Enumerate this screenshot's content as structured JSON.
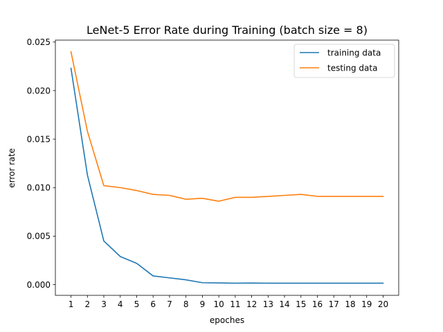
{
  "chart_data": {
    "type": "line",
    "title": "LeNet-5 Error Rate during Training (batch size = 8)",
    "xlabel": "epoches",
    "ylabel": "error rate",
    "x": [
      1,
      2,
      3,
      4,
      5,
      6,
      7,
      8,
      9,
      10,
      11,
      12,
      13,
      14,
      15,
      16,
      17,
      18,
      19,
      20
    ],
    "x_ticks": [
      "1",
      "2",
      "3",
      "4",
      "5",
      "6",
      "7",
      "8",
      "9",
      "10",
      "11",
      "12",
      "13",
      "14",
      "15",
      "16",
      "17",
      "18",
      "19",
      "20"
    ],
    "y_ticks": [
      "0.000",
      "0.005",
      "0.010",
      "0.015",
      "0.020",
      "0.025"
    ],
    "y_tick_values": [
      0,
      0.005,
      0.01,
      0.015,
      0.02,
      0.025
    ],
    "xlim": [
      0.05,
      20.95
    ],
    "ylim": [
      -0.0011,
      0.0252
    ],
    "grid": false,
    "legend_position": "top-right",
    "series": [
      {
        "name": "training data",
        "color": "#1f77b4",
        "values": [
          0.0223,
          0.0113,
          0.0045,
          0.0029,
          0.0022,
          0.0009,
          0.0007,
          0.0005,
          0.0002,
          0.00018,
          0.00015,
          0.00017,
          0.00015,
          0.00015,
          0.00015,
          0.00015,
          0.00015,
          0.00015,
          0.00015,
          0.00015
        ]
      },
      {
        "name": "testing data",
        "color": "#ff7f0e",
        "values": [
          0.024,
          0.0158,
          0.0102,
          0.01,
          0.0097,
          0.0093,
          0.0092,
          0.0088,
          0.0089,
          0.0086,
          0.009,
          0.009,
          0.0091,
          0.0092,
          0.0093,
          0.0091,
          0.0091,
          0.0091,
          0.0091,
          0.0091
        ]
      }
    ]
  }
}
